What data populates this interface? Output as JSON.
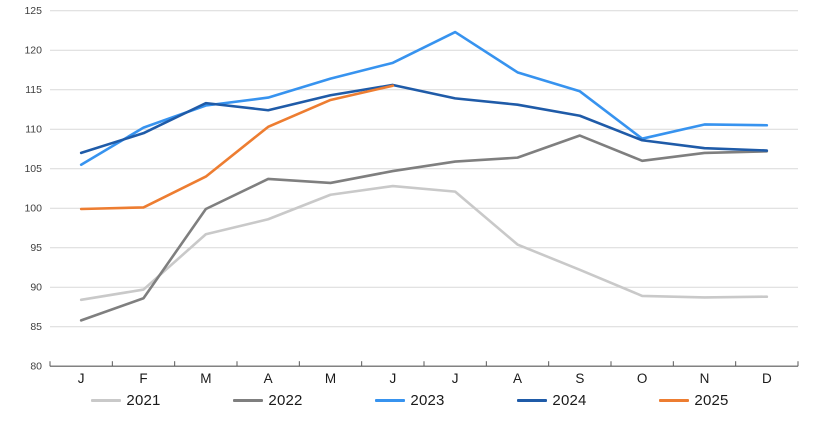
{
  "chart_data": {
    "type": "line",
    "title": "",
    "xlabel": "",
    "ylabel": "",
    "x_labels": [
      "J",
      "F",
      "M",
      "A",
      "M",
      "J",
      "J",
      "A",
      "S",
      "O",
      "N",
      "D"
    ],
    "ylim": [
      80,
      125
    ],
    "ytick_step": 5,
    "ytick_labels": [
      "80",
      "85",
      "90",
      "95",
      "100",
      "105",
      "110",
      "115",
      "120",
      "125"
    ],
    "grid": "horizontal",
    "legend_position": "bottom",
    "series": [
      {
        "name": "2021",
        "color": "#C9C9C9",
        "values": [
          88.4,
          89.7,
          96.7,
          98.6,
          101.7,
          102.8,
          102.1,
          95.4,
          92.2,
          88.9,
          88.7,
          88.8
        ]
      },
      {
        "name": "2022",
        "color": "#7F7F7F",
        "values": [
          85.8,
          88.6,
          99.9,
          103.7,
          103.2,
          104.7,
          105.9,
          106.4,
          109.2,
          106.0,
          107.0,
          107.2
        ]
      },
      {
        "name": "2023",
        "color": "#3793EF",
        "values": [
          105.5,
          110.2,
          113.0,
          114.0,
          116.4,
          118.4,
          122.3,
          117.2,
          114.8,
          108.8,
          110.6,
          110.5
        ]
      },
      {
        "name": "2024",
        "color": "#1F5BA8",
        "values": [
          107.0,
          109.5,
          113.3,
          112.4,
          114.3,
          115.6,
          113.9,
          113.1,
          111.7,
          108.6,
          107.6,
          107.3
        ]
      },
      {
        "name": "2025",
        "color": "#ED7D31",
        "values": [
          99.9,
          100.1,
          104.0,
          110.3,
          113.7,
          115.5,
          null,
          null,
          null,
          null,
          null,
          null
        ]
      }
    ]
  },
  "style": {
    "grid_color": "#D9D9D9",
    "axis_color": "#595959",
    "line_width": 2.6
  }
}
